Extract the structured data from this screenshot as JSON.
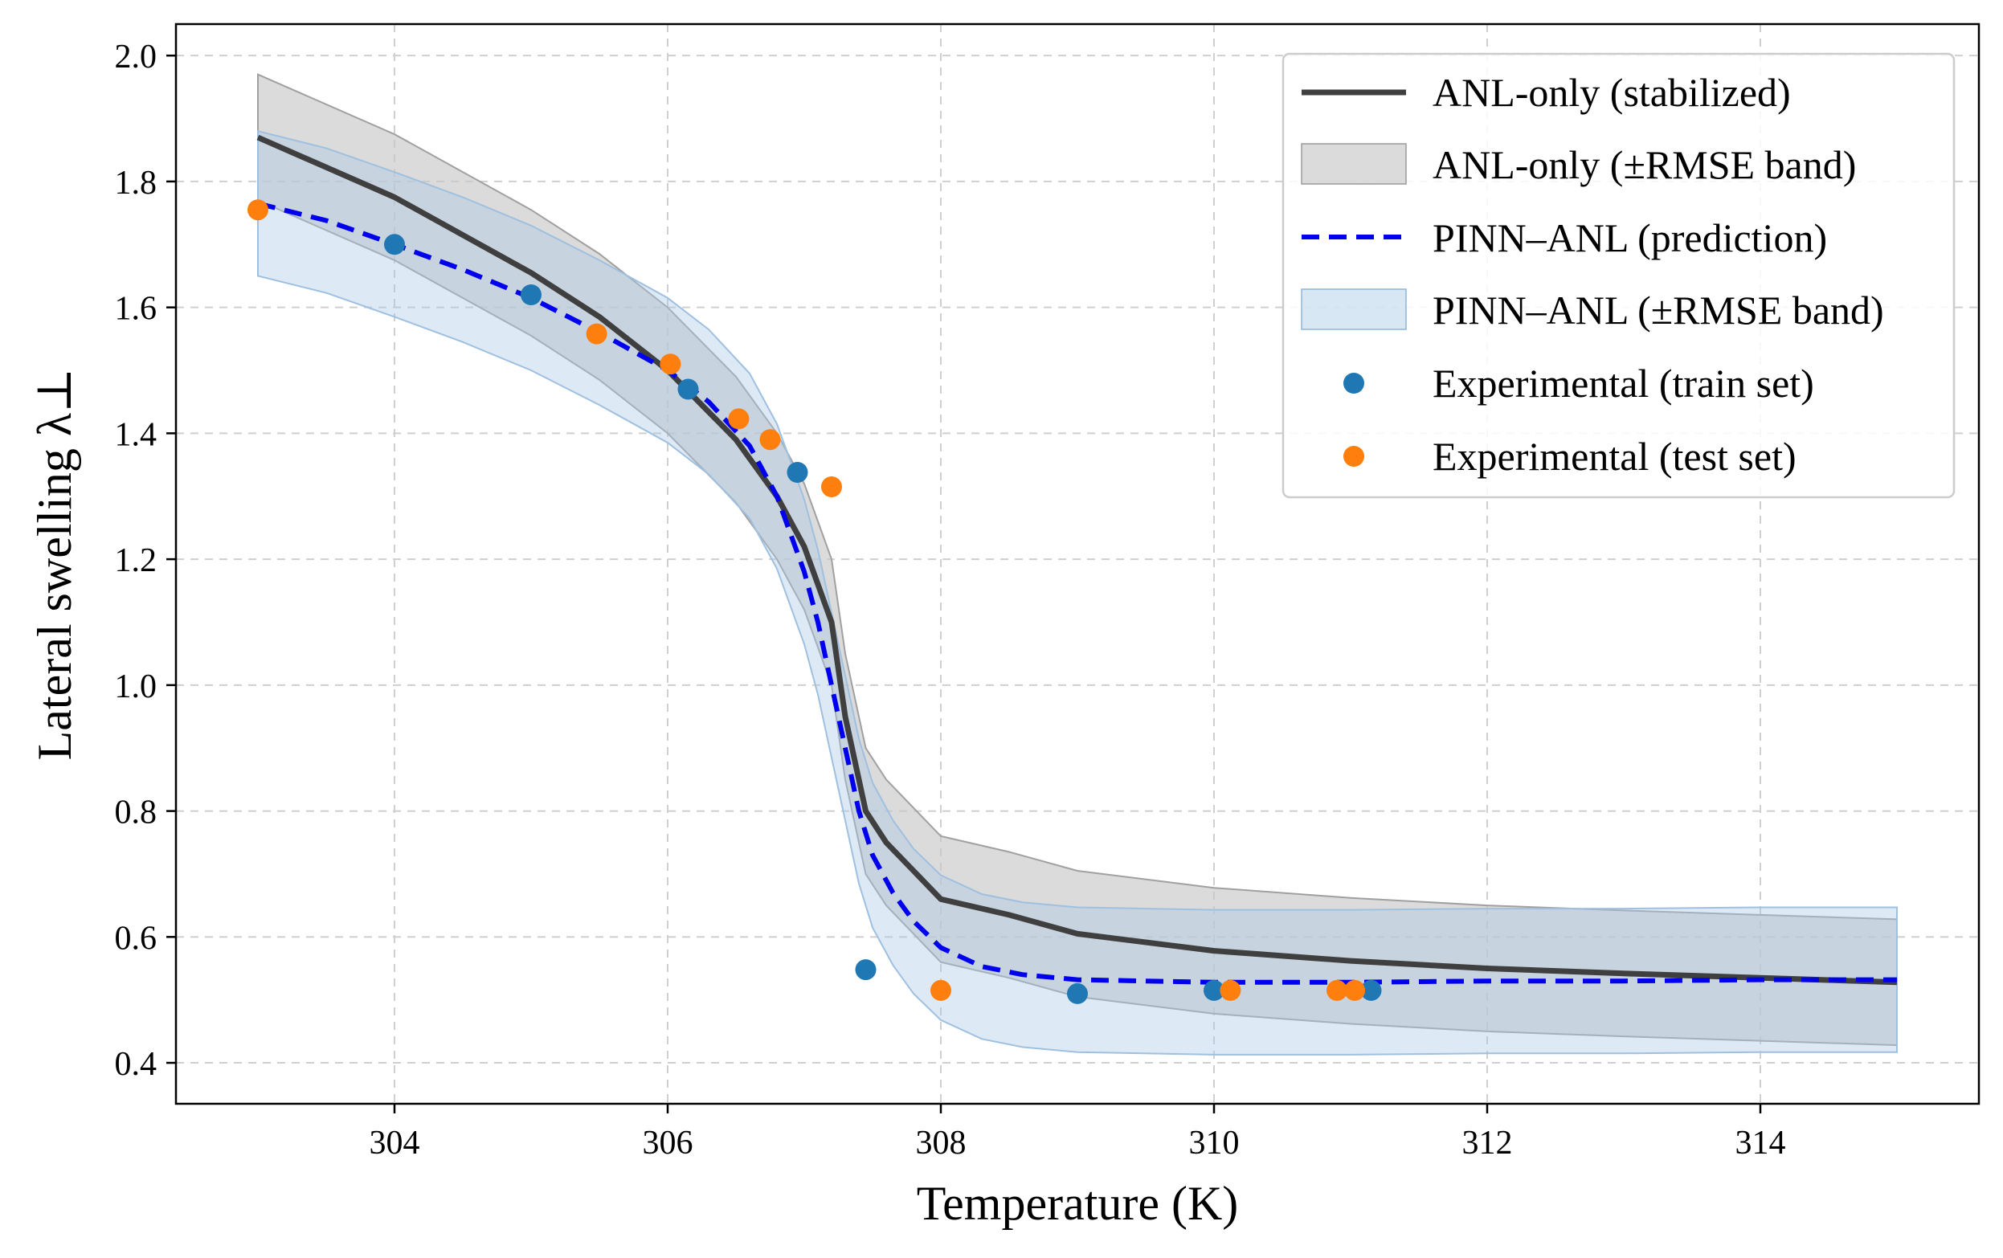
{
  "colors": {
    "anl_line": "#3f3f3f",
    "anl_band": "#c8c8c8",
    "pinn_line": "#0000ee",
    "pinn_band": "#a9c9e6",
    "train": "#1f77b4",
    "test": "#ff7f0e"
  },
  "chart_data": {
    "type": "line",
    "title": "",
    "xlabel": "Temperature (K)",
    "ylabel": "Lateral swelling λ⊥",
    "xlim": [
      302.4,
      315.6
    ],
    "ylim": [
      0.335,
      2.05
    ],
    "grid": true,
    "legend_position": "top-right",
    "x_ticks": [
      "304",
      "306",
      "308",
      "310",
      "312",
      "314"
    ],
    "y_ticks": [
      "0.4",
      "0.6",
      "0.8",
      "1.0",
      "1.2",
      "1.4",
      "1.6",
      "1.8",
      "2.0"
    ],
    "legend": [
      "ANL-only (stabilized)",
      "ANL-only (±RMSE band)",
      "PINN–ANL (prediction)",
      "PINN–ANL (±RMSE band)",
      "Experimental (train set)",
      "Experimental (test set)"
    ],
    "series": [
      {
        "name": "ANL-only (stabilized)",
        "style": "solid",
        "x": [
          303.0,
          304.0,
          305.0,
          305.5,
          306.0,
          306.5,
          306.8,
          307.0,
          307.2,
          307.3,
          307.45,
          307.6,
          307.8,
          308.0,
          308.5,
          309.0,
          310.0,
          311.0,
          312.0,
          313.0,
          314.0,
          315.0
        ],
        "y": [
          1.87,
          1.775,
          1.655,
          1.585,
          1.5,
          1.39,
          1.3,
          1.22,
          1.1,
          0.95,
          0.8,
          0.75,
          0.705,
          0.66,
          0.635,
          0.605,
          0.578,
          0.562,
          0.55,
          0.542,
          0.535,
          0.528
        ]
      },
      {
        "name": "ANL-only (±RMSE band)",
        "style": "band",
        "x": [
          303.0,
          304.0,
          305.0,
          305.5,
          306.0,
          306.5,
          306.8,
          307.0,
          307.2,
          307.3,
          307.45,
          307.6,
          307.8,
          308.0,
          308.5,
          309.0,
          310.0,
          311.0,
          312.0,
          313.0,
          314.0,
          315.0
        ],
        "lower": [
          1.77,
          1.675,
          1.555,
          1.485,
          1.4,
          1.29,
          1.2,
          1.12,
          1.0,
          0.85,
          0.7,
          0.65,
          0.605,
          0.56,
          0.535,
          0.505,
          0.478,
          0.462,
          0.45,
          0.442,
          0.435,
          0.428
        ],
        "upper": [
          1.97,
          1.875,
          1.755,
          1.685,
          1.6,
          1.49,
          1.4,
          1.32,
          1.2,
          1.05,
          0.9,
          0.85,
          0.805,
          0.76,
          0.735,
          0.705,
          0.678,
          0.662,
          0.65,
          0.642,
          0.635,
          0.628
        ]
      },
      {
        "name": "PINN–ANL (prediction)",
        "style": "dashed",
        "x": [
          303.0,
          303.5,
          304.0,
          304.5,
          305.0,
          305.5,
          306.0,
          306.3,
          306.6,
          306.8,
          307.0,
          307.1,
          307.2,
          307.3,
          307.4,
          307.5,
          307.65,
          307.8,
          308.0,
          308.3,
          308.6,
          309.0,
          310.0,
          311.0,
          312.0,
          313.0,
          314.0,
          315.0
        ],
        "y": [
          1.765,
          1.738,
          1.7,
          1.66,
          1.615,
          1.56,
          1.5,
          1.45,
          1.38,
          1.3,
          1.18,
          1.1,
          1.0,
          0.9,
          0.8,
          0.73,
          0.67,
          0.625,
          0.583,
          0.553,
          0.54,
          0.532,
          0.528,
          0.528,
          0.53,
          0.53,
          0.532,
          0.532
        ]
      },
      {
        "name": "PINN–ANL (±RMSE band)",
        "style": "band",
        "x": [
          303.0,
          303.5,
          304.0,
          304.5,
          305.0,
          305.5,
          306.0,
          306.3,
          306.6,
          306.8,
          307.0,
          307.1,
          307.2,
          307.3,
          307.4,
          307.5,
          307.65,
          307.8,
          308.0,
          308.3,
          308.6,
          309.0,
          310.0,
          311.0,
          312.0,
          313.0,
          314.0,
          315.0
        ],
        "lower": [
          1.65,
          1.623,
          1.585,
          1.545,
          1.5,
          1.445,
          1.385,
          1.335,
          1.265,
          1.185,
          1.065,
          0.985,
          0.885,
          0.785,
          0.685,
          0.615,
          0.555,
          0.51,
          0.468,
          0.438,
          0.425,
          0.417,
          0.413,
          0.413,
          0.415,
          0.415,
          0.417,
          0.417
        ],
        "upper": [
          1.88,
          1.853,
          1.815,
          1.775,
          1.73,
          1.675,
          1.615,
          1.565,
          1.495,
          1.415,
          1.295,
          1.215,
          1.115,
          1.015,
          0.915,
          0.845,
          0.785,
          0.74,
          0.698,
          0.668,
          0.655,
          0.647,
          0.643,
          0.643,
          0.645,
          0.645,
          0.647,
          0.647
        ]
      }
    ],
    "scatter": [
      {
        "name": "Experimental (train set)",
        "x": [
          304.0,
          305.0,
          306.15,
          306.95,
          307.45,
          309.0,
          310.0,
          311.15
        ],
        "y": [
          1.7,
          1.62,
          1.47,
          1.338,
          0.548,
          0.51,
          0.515,
          0.515
        ]
      },
      {
        "name": "Experimental (test set)",
        "x": [
          303.0,
          305.48,
          306.02,
          306.52,
          306.75,
          307.2,
          308.0,
          310.12,
          310.9,
          311.03
        ],
        "y": [
          1.755,
          1.558,
          1.51,
          1.423,
          1.39,
          1.315,
          0.515,
          0.515,
          0.515,
          0.515
        ]
      }
    ]
  }
}
